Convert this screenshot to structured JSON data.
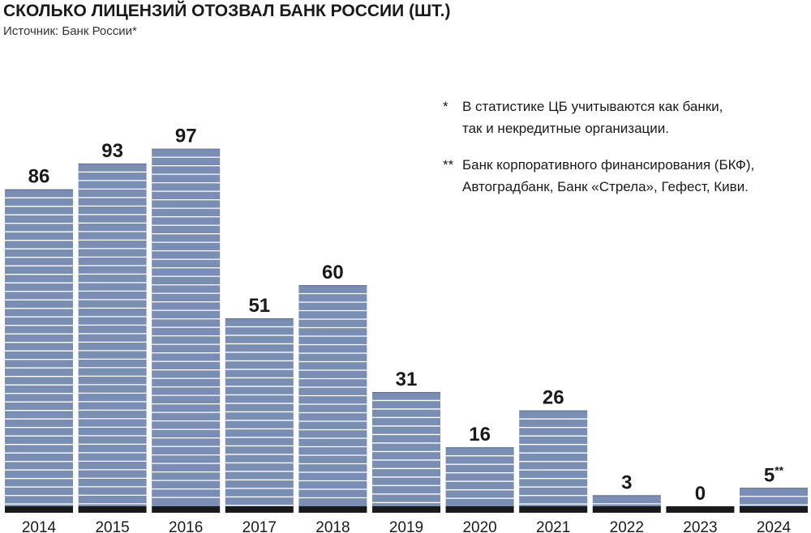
{
  "header": {
    "title": "СКОЛЬКО ЛИЦЕНЗИЙ ОТОЗВАЛ БАНК РОССИИ (ШТ.)",
    "subtitle": "Источник: Банк России*"
  },
  "notes": [
    {
      "mark": "*",
      "line1": "В статистике ЦБ учитываются как банки,",
      "line2": "так и некредитные организации."
    },
    {
      "mark": "**",
      "line1": "Банк корпоративного финансирования (БКФ),",
      "line2": "Автоградбанк, Банк «Стрела», Гефест, Киви."
    }
  ],
  "chart_data": {
    "type": "bar",
    "title": "СКОЛЬКО ЛИЦЕНЗИЙ ОТОЗВАЛ БАНК РОССИИ (ШТ.)",
    "subtitle": "Источник: Банк России*",
    "xlabel": "",
    "ylabel": "",
    "categories": [
      "2014",
      "2015",
      "2016",
      "2017",
      "2018",
      "2019",
      "2020",
      "2021",
      "2022",
      "2023",
      "2024"
    ],
    "values": [
      86,
      93,
      97,
      51,
      60,
      31,
      16,
      26,
      3,
      0,
      5
    ],
    "value_labels": [
      "86",
      "93",
      "97",
      "51",
      "60",
      "31",
      "16",
      "26",
      "3",
      "0",
      "5"
    ],
    "value_label_suffixes": [
      "",
      "",
      "",
      "",
      "",
      "",
      "",
      "",
      "",
      "",
      "**"
    ],
    "ylim": [
      0,
      100
    ],
    "grid": false,
    "legend": "none",
    "colors": {
      "bar": "#7a8db3",
      "stripe": "#ffffff",
      "baseline": "#1a1a1a",
      "text": "#1a1a1a"
    }
  }
}
